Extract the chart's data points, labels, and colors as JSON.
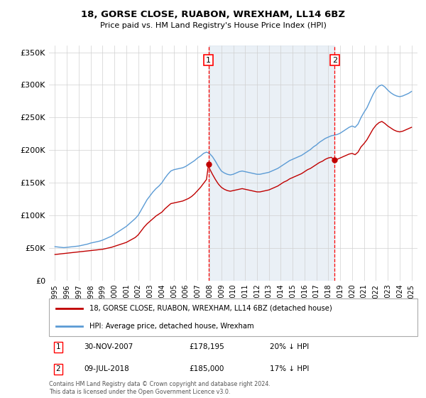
{
  "title": "18, GORSE CLOSE, RUABON, WREXHAM, LL14 6BZ",
  "subtitle": "Price paid vs. HM Land Registry's House Price Index (HPI)",
  "legend_line1": "18, GORSE CLOSE, RUABON, WREXHAM, LL14 6BZ (detached house)",
  "legend_line2": "HPI: Average price, detached house, Wrexham",
  "footnote": "Contains HM Land Registry data © Crown copyright and database right 2024.\nThis data is licensed under the Open Government Licence v3.0.",
  "transaction1_label": "1",
  "transaction1_date": "30-NOV-2007",
  "transaction1_price": "£178,195",
  "transaction1_hpi": "20% ↓ HPI",
  "transaction2_label": "2",
  "transaction2_date": "09-JUL-2018",
  "transaction2_price": "£185,000",
  "transaction2_hpi": "17% ↓ HPI",
  "sale1_x": 2007.92,
  "sale1_y": 178195,
  "sale2_x": 2018.53,
  "sale2_y": 185000,
  "vline1_x": 2007.92,
  "vline2_x": 2018.53,
  "hpi_color": "#5b9bd5",
  "price_color": "#c00000",
  "vline_color": "#ff0000",
  "bg_band_color": "#dce6f1",
  "ylim": [
    0,
    360000
  ],
  "xlim_start": 1994.5,
  "xlim_end": 2025.5,
  "hpi_data": [
    [
      1995,
      52000
    ],
    [
      1995.25,
      51500
    ],
    [
      1995.5,
      51000
    ],
    [
      1995.75,
      50500
    ],
    [
      1996,
      51000
    ],
    [
      1996.25,
      51500
    ],
    [
      1996.5,
      52000
    ],
    [
      1996.75,
      52500
    ],
    [
      1997,
      53000
    ],
    [
      1997.25,
      54000
    ],
    [
      1997.5,
      55000
    ],
    [
      1997.75,
      56000
    ],
    [
      1998,
      57500
    ],
    [
      1998.25,
      58500
    ],
    [
      1998.5,
      59500
    ],
    [
      1998.75,
      60500
    ],
    [
      1999,
      62000
    ],
    [
      1999.25,
      64000
    ],
    [
      1999.5,
      66000
    ],
    [
      1999.75,
      68000
    ],
    [
      2000,
      71000
    ],
    [
      2000.25,
      74000
    ],
    [
      2000.5,
      77000
    ],
    [
      2000.75,
      80000
    ],
    [
      2001,
      83000
    ],
    [
      2001.25,
      87000
    ],
    [
      2001.5,
      91000
    ],
    [
      2001.75,
      95000
    ],
    [
      2002,
      100000
    ],
    [
      2002.25,
      108000
    ],
    [
      2002.5,
      116000
    ],
    [
      2002.75,
      124000
    ],
    [
      2003,
      130000
    ],
    [
      2003.25,
      136000
    ],
    [
      2003.5,
      141000
    ],
    [
      2003.75,
      145000
    ],
    [
      2004,
      150000
    ],
    [
      2004.25,
      157000
    ],
    [
      2004.5,
      163000
    ],
    [
      2004.75,
      168000
    ],
    [
      2005,
      170000
    ],
    [
      2005.25,
      171000
    ],
    [
      2005.5,
      172000
    ],
    [
      2005.75,
      173000
    ],
    [
      2006,
      175000
    ],
    [
      2006.25,
      178000
    ],
    [
      2006.5,
      181000
    ],
    [
      2006.75,
      184000
    ],
    [
      2007,
      188000
    ],
    [
      2007.25,
      191000
    ],
    [
      2007.5,
      195000
    ],
    [
      2007.75,
      197000
    ],
    [
      2008,
      195000
    ],
    [
      2008.25,
      190000
    ],
    [
      2008.5,
      183000
    ],
    [
      2008.75,
      175000
    ],
    [
      2009,
      168000
    ],
    [
      2009.25,
      165000
    ],
    [
      2009.5,
      163000
    ],
    [
      2009.75,
      162000
    ],
    [
      2010,
      163000
    ],
    [
      2010.25,
      165000
    ],
    [
      2010.5,
      167000
    ],
    [
      2010.75,
      168000
    ],
    [
      2011,
      167000
    ],
    [
      2011.25,
      166000
    ],
    [
      2011.5,
      165000
    ],
    [
      2011.75,
      164000
    ],
    [
      2012,
      163000
    ],
    [
      2012.25,
      163000
    ],
    [
      2012.5,
      164000
    ],
    [
      2012.75,
      165000
    ],
    [
      2013,
      166000
    ],
    [
      2013.25,
      168000
    ],
    [
      2013.5,
      170000
    ],
    [
      2013.75,
      172000
    ],
    [
      2014,
      175000
    ],
    [
      2014.25,
      178000
    ],
    [
      2014.5,
      181000
    ],
    [
      2014.75,
      184000
    ],
    [
      2015,
      186000
    ],
    [
      2015.25,
      188000
    ],
    [
      2015.5,
      190000
    ],
    [
      2015.75,
      192000
    ],
    [
      2016,
      195000
    ],
    [
      2016.25,
      198000
    ],
    [
      2016.5,
      201000
    ],
    [
      2016.75,
      205000
    ],
    [
      2017,
      208000
    ],
    [
      2017.25,
      212000
    ],
    [
      2017.5,
      215000
    ],
    [
      2017.75,
      218000
    ],
    [
      2018,
      220000
    ],
    [
      2018.25,
      222000
    ],
    [
      2018.5,
      223000
    ],
    [
      2018.75,
      224000
    ],
    [
      2019,
      226000
    ],
    [
      2019.25,
      229000
    ],
    [
      2019.5,
      232000
    ],
    [
      2019.75,
      235000
    ],
    [
      2020,
      237000
    ],
    [
      2020.25,
      235000
    ],
    [
      2020.5,
      240000
    ],
    [
      2020.75,
      250000
    ],
    [
      2021,
      258000
    ],
    [
      2021.25,
      265000
    ],
    [
      2021.5,
      275000
    ],
    [
      2021.75,
      285000
    ],
    [
      2022,
      293000
    ],
    [
      2022.25,
      298000
    ],
    [
      2022.5,
      300000
    ],
    [
      2022.75,
      297000
    ],
    [
      2023,
      292000
    ],
    [
      2023.25,
      288000
    ],
    [
      2023.5,
      285000
    ],
    [
      2023.75,
      283000
    ],
    [
      2024,
      282000
    ],
    [
      2024.25,
      283000
    ],
    [
      2024.5,
      285000
    ],
    [
      2024.75,
      287000
    ],
    [
      2025,
      290000
    ]
  ],
  "price_data": [
    [
      1995,
      40000
    ],
    [
      1995.25,
      40500
    ],
    [
      1995.5,
      41000
    ],
    [
      1995.75,
      41500
    ],
    [
      1996,
      42000
    ],
    [
      1996.25,
      42500
    ],
    [
      1996.5,
      43000
    ],
    [
      1996.75,
      43500
    ],
    [
      1997,
      44000
    ],
    [
      1997.25,
      44500
    ],
    [
      1997.5,
      45000
    ],
    [
      1997.75,
      45500
    ],
    [
      1998,
      46000
    ],
    [
      1998.25,
      46500
    ],
    [
      1998.5,
      47000
    ],
    [
      1998.75,
      47500
    ],
    [
      1999,
      48000
    ],
    [
      1999.25,
      49000
    ],
    [
      1999.5,
      50000
    ],
    [
      1999.75,
      51000
    ],
    [
      2000,
      52500
    ],
    [
      2000.25,
      54000
    ],
    [
      2000.5,
      55500
    ],
    [
      2000.75,
      57000
    ],
    [
      2001,
      58500
    ],
    [
      2001.25,
      61000
    ],
    [
      2001.5,
      63500
    ],
    [
      2001.75,
      66000
    ],
    [
      2002,
      70000
    ],
    [
      2002.25,
      76000
    ],
    [
      2002.5,
      82000
    ],
    [
      2002.75,
      87000
    ],
    [
      2003,
      91000
    ],
    [
      2003.25,
      95000
    ],
    [
      2003.5,
      99000
    ],
    [
      2003.75,
      102000
    ],
    [
      2004,
      105000
    ],
    [
      2004.25,
      110000
    ],
    [
      2004.5,
      114000
    ],
    [
      2004.75,
      118000
    ],
    [
      2005,
      119000
    ],
    [
      2005.25,
      120000
    ],
    [
      2005.5,
      121000
    ],
    [
      2005.75,
      122000
    ],
    [
      2006,
      124000
    ],
    [
      2006.25,
      126000
    ],
    [
      2006.5,
      129000
    ],
    [
      2006.75,
      133000
    ],
    [
      2007,
      138000
    ],
    [
      2007.25,
      143000
    ],
    [
      2007.5,
      149000
    ],
    [
      2007.75,
      155000
    ],
    [
      2007.92,
      178195
    ],
    [
      2008,
      172000
    ],
    [
      2008.25,
      163000
    ],
    [
      2008.5,
      155000
    ],
    [
      2008.75,
      148000
    ],
    [
      2009,
      143000
    ],
    [
      2009.25,
      140000
    ],
    [
      2009.5,
      138000
    ],
    [
      2009.75,
      137000
    ],
    [
      2010,
      138000
    ],
    [
      2010.25,
      139000
    ],
    [
      2010.5,
      140000
    ],
    [
      2010.75,
      141000
    ],
    [
      2011,
      140000
    ],
    [
      2011.25,
      139000
    ],
    [
      2011.5,
      138000
    ],
    [
      2011.75,
      137000
    ],
    [
      2012,
      136000
    ],
    [
      2012.25,
      136000
    ],
    [
      2012.5,
      137000
    ],
    [
      2012.75,
      138000
    ],
    [
      2013,
      139000
    ],
    [
      2013.25,
      141000
    ],
    [
      2013.5,
      143000
    ],
    [
      2013.75,
      145000
    ],
    [
      2014,
      148000
    ],
    [
      2014.25,
      151000
    ],
    [
      2014.5,
      153000
    ],
    [
      2014.75,
      156000
    ],
    [
      2015,
      158000
    ],
    [
      2015.25,
      160000
    ],
    [
      2015.5,
      162000
    ],
    [
      2015.75,
      164000
    ],
    [
      2016,
      167000
    ],
    [
      2016.25,
      170000
    ],
    [
      2016.5,
      172000
    ],
    [
      2016.75,
      175000
    ],
    [
      2017,
      178000
    ],
    [
      2017.25,
      181000
    ],
    [
      2017.5,
      183000
    ],
    [
      2017.75,
      186000
    ],
    [
      2018,
      188000
    ],
    [
      2018.25,
      189000
    ],
    [
      2018.5,
      185000
    ],
    [
      2018.53,
      185000
    ],
    [
      2018.75,
      186000
    ],
    [
      2019,
      188000
    ],
    [
      2019.25,
      190000
    ],
    [
      2019.5,
      192000
    ],
    [
      2019.75,
      194000
    ],
    [
      2020,
      195000
    ],
    [
      2020.25,
      193000
    ],
    [
      2020.5,
      197000
    ],
    [
      2020.75,
      205000
    ],
    [
      2021,
      210000
    ],
    [
      2021.25,
      216000
    ],
    [
      2021.5,
      224000
    ],
    [
      2021.75,
      232000
    ],
    [
      2022,
      238000
    ],
    [
      2022.25,
      242000
    ],
    [
      2022.5,
      244000
    ],
    [
      2022.75,
      241000
    ],
    [
      2023,
      237000
    ],
    [
      2023.25,
      234000
    ],
    [
      2023.5,
      231000
    ],
    [
      2023.75,
      229000
    ],
    [
      2024,
      228000
    ],
    [
      2024.25,
      229000
    ],
    [
      2024.5,
      231000
    ],
    [
      2024.75,
      233000
    ],
    [
      2025,
      235000
    ]
  ]
}
